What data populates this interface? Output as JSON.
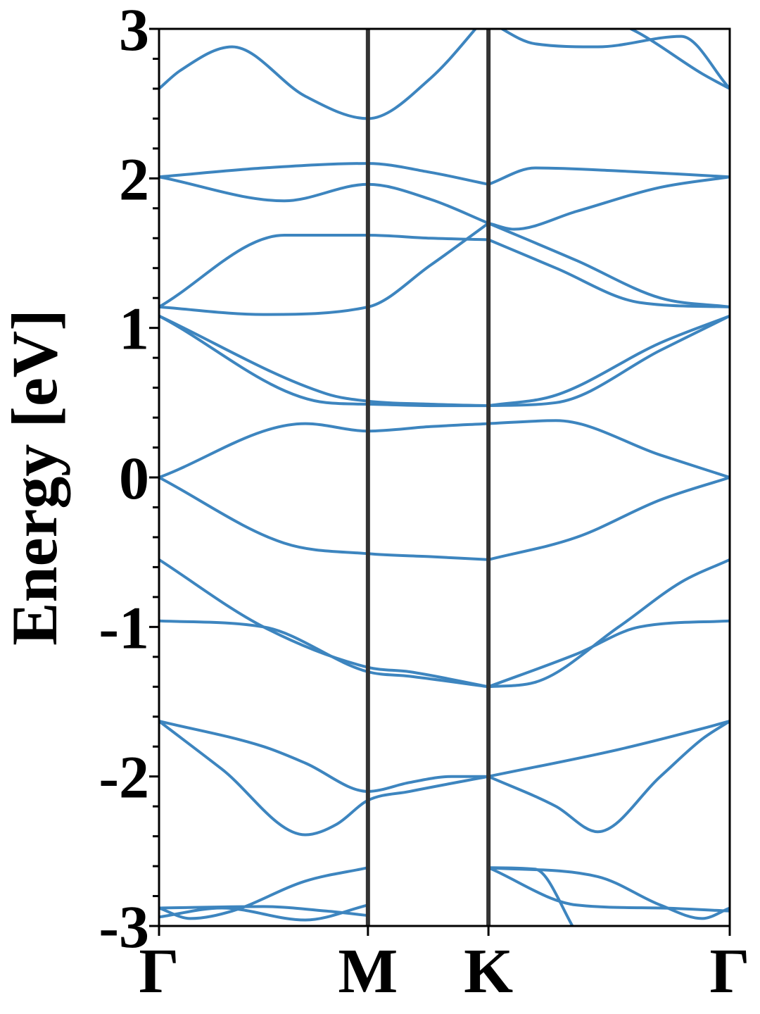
{
  "chart_data": {
    "type": "line",
    "title": "",
    "xlabel": "",
    "ylabel": "Energy [eV]",
    "ylim": [
      -3,
      3
    ],
    "yticks": [
      {
        "value": 3,
        "label": "3"
      },
      {
        "value": 2,
        "label": "2"
      },
      {
        "value": 1,
        "label": "1"
      },
      {
        "value": 0,
        "label": "0"
      },
      {
        "value": -1,
        "label": "-1"
      },
      {
        "value": -2,
        "label": "-2"
      },
      {
        "value": -3,
        "label": "-3"
      }
    ],
    "kpath": [
      {
        "label": "Γ",
        "position": 0.0
      },
      {
        "label": "M",
        "position": 1.0
      },
      {
        "label": "K",
        "position": 1.577
      },
      {
        "label": "Γ",
        "position": 2.732
      }
    ],
    "grid": false,
    "legend": "none",
    "colors": {
      "bands": "#3d85bf",
      "high_symmetry_lines": "#333333"
    },
    "series": [
      {
        "points": [
          [
            0,
            -2.94
          ],
          [
            0.3,
            -2.88
          ],
          [
            0.7,
            -2.96
          ],
          [
            1.0,
            -2.86
          ]
        ]
      },
      {
        "points": [
          [
            0,
            -2.88
          ],
          [
            0.5,
            -2.87
          ],
          [
            0.8,
            -2.9
          ],
          [
            1.0,
            -2.93
          ]
        ]
      },
      {
        "points": [
          [
            0,
            -2.88
          ],
          [
            0.15,
            -2.95
          ],
          [
            0.35,
            -2.9
          ],
          [
            0.7,
            -2.7
          ],
          [
            1.0,
            -2.61
          ]
        ]
      },
      {
        "points": [
          [
            0,
            -1.63
          ],
          [
            0.5,
            -1.8
          ],
          [
            0.7,
            -1.91
          ],
          [
            1.0,
            -2.1
          ],
          [
            1.2,
            -2.04
          ],
          [
            1.4,
            -2.0
          ],
          [
            1.577,
            -2.0
          ]
        ]
      },
      {
        "points": [
          [
            0,
            -1.63
          ],
          [
            0.3,
            -1.95
          ],
          [
            0.7,
            -2.39
          ],
          [
            0.85,
            -2.32
          ],
          [
            1.0,
            -2.16
          ],
          [
            1.2,
            -2.1
          ],
          [
            1.577,
            -2.0
          ]
        ]
      },
      {
        "points": [
          [
            0,
            -0.96
          ],
          [
            0.5,
            -1.0
          ],
          [
            1.0,
            -1.3
          ],
          [
            1.2,
            -1.33
          ],
          [
            1.577,
            -1.4
          ]
        ]
      },
      {
        "points": [
          [
            0,
            -0.55
          ],
          [
            0.5,
            -1.0
          ],
          [
            1.0,
            -1.27
          ],
          [
            1.2,
            -1.3
          ],
          [
            1.577,
            -1.4
          ]
        ]
      },
      {
        "points": [
          [
            0,
            0.0
          ],
          [
            0.6,
            -0.44
          ],
          [
            1.0,
            -0.51
          ],
          [
            1.3,
            -0.53
          ],
          [
            1.577,
            -0.55
          ]
        ]
      },
      {
        "points": [
          [
            0,
            0.0
          ],
          [
            0.7,
            0.36
          ],
          [
            1.0,
            0.31
          ],
          [
            1.3,
            0.34
          ],
          [
            1.577,
            0.36
          ]
        ]
      },
      {
        "points": [
          [
            0,
            1.08
          ],
          [
            0.8,
            0.56
          ],
          [
            1.0,
            0.51
          ],
          [
            1.3,
            0.49
          ],
          [
            1.577,
            0.48
          ]
        ]
      },
      {
        "points": [
          [
            0,
            1.08
          ],
          [
            0.8,
            0.5
          ],
          [
            1.0,
            0.49
          ],
          [
            1.3,
            0.48
          ],
          [
            1.577,
            0.48
          ]
        ]
      },
      {
        "points": [
          [
            0,
            1.14
          ],
          [
            0.5,
            1.09
          ],
          [
            1.0,
            1.14
          ],
          [
            1.3,
            1.42
          ],
          [
            1.577,
            1.7
          ]
        ]
      },
      {
        "points": [
          [
            0,
            1.14
          ],
          [
            0.6,
            1.62
          ],
          [
            1.0,
            1.62
          ],
          [
            1.3,
            1.6
          ],
          [
            1.577,
            1.59
          ]
        ]
      },
      {
        "points": [
          [
            0,
            2.01
          ],
          [
            0.6,
            1.85
          ],
          [
            1.0,
            1.96
          ],
          [
            1.3,
            1.86
          ],
          [
            1.577,
            1.7
          ]
        ]
      },
      {
        "points": [
          [
            0,
            2.01
          ],
          [
            0.5,
            2.07
          ],
          [
            1.0,
            2.1
          ],
          [
            1.3,
            2.04
          ],
          [
            1.577,
            1.96
          ]
        ]
      },
      {
        "points": [
          [
            0,
            2.6
          ],
          [
            0.1,
            2.72
          ],
          [
            0.35,
            2.88
          ],
          [
            0.7,
            2.55
          ],
          [
            1.0,
            2.4
          ],
          [
            1.3,
            2.67
          ],
          [
            1.577,
            3.1
          ]
        ]
      },
      {
        "points": [
          [
            1.577,
            -2.61
          ],
          [
            2.1,
            -2.67
          ],
          [
            2.4,
            -2.86
          ],
          [
            2.6,
            -2.95
          ],
          [
            2.732,
            -2.88
          ]
        ]
      },
      {
        "points": [
          [
            1.577,
            -2.61
          ],
          [
            2.0,
            -2.86
          ],
          [
            2.4,
            -2.88
          ],
          [
            2.732,
            -2.9
          ]
        ]
      },
      {
        "points": [
          [
            1.577,
            -2.61
          ],
          [
            1.8,
            -2.62
          ],
          [
            2.0,
            -3.05
          ]
        ]
      },
      {
        "points": [
          [
            1.577,
            -2.0
          ],
          [
            2.2,
            -1.82
          ],
          [
            2.6,
            -1.68
          ],
          [
            2.732,
            -1.63
          ]
        ]
      },
      {
        "points": [
          [
            1.577,
            -2.0
          ],
          [
            1.9,
            -2.2
          ],
          [
            2.1,
            -2.37
          ],
          [
            2.4,
            -2.0
          ],
          [
            2.6,
            -1.75
          ],
          [
            2.732,
            -1.63
          ]
        ]
      },
      {
        "points": [
          [
            1.577,
            -1.4
          ],
          [
            2.0,
            -1.18
          ],
          [
            2.3,
            -1.0
          ],
          [
            2.732,
            -0.96
          ]
        ]
      },
      {
        "points": [
          [
            1.577,
            -1.4
          ],
          [
            1.8,
            -1.37
          ],
          [
            2.2,
            -1.0
          ],
          [
            2.5,
            -0.7
          ],
          [
            2.732,
            -0.55
          ]
        ]
      },
      {
        "points": [
          [
            1.577,
            -0.55
          ],
          [
            2.0,
            -0.4
          ],
          [
            2.4,
            -0.15
          ],
          [
            2.732,
            0.0
          ]
        ]
      },
      {
        "points": [
          [
            1.577,
            0.36
          ],
          [
            1.9,
            0.38
          ],
          [
            2.4,
            0.15
          ],
          [
            2.732,
            0.0
          ]
        ]
      },
      {
        "points": [
          [
            1.577,
            0.48
          ],
          [
            1.9,
            0.55
          ],
          [
            2.4,
            0.9
          ],
          [
            2.732,
            1.08
          ]
        ]
      },
      {
        "points": [
          [
            1.577,
            0.48
          ],
          [
            1.9,
            0.5
          ],
          [
            2.4,
            0.85
          ],
          [
            2.732,
            1.08
          ]
        ]
      },
      {
        "points": [
          [
            1.577,
            1.59
          ],
          [
            1.9,
            1.4
          ],
          [
            2.3,
            1.17
          ],
          [
            2.732,
            1.14
          ]
        ]
      },
      {
        "points": [
          [
            1.577,
            1.7
          ],
          [
            2.0,
            1.45
          ],
          [
            2.4,
            1.2
          ],
          [
            2.732,
            1.14
          ]
        ]
      },
      {
        "points": [
          [
            1.577,
            1.7
          ],
          [
            1.7,
            1.66
          ],
          [
            2.0,
            1.78
          ],
          [
            2.4,
            1.94
          ],
          [
            2.732,
            2.01
          ]
        ]
      },
      {
        "points": [
          [
            1.577,
            1.96
          ],
          [
            1.8,
            2.07
          ],
          [
            2.2,
            2.05
          ],
          [
            2.732,
            2.01
          ]
        ]
      },
      {
        "points": [
          [
            1.577,
            3.05
          ],
          [
            1.8,
            2.9
          ],
          [
            2.1,
            2.88
          ],
          [
            2.5,
            2.95
          ],
          [
            2.732,
            2.6
          ]
        ]
      },
      {
        "points": [
          [
            2.1,
            3.1
          ],
          [
            2.3,
            2.97
          ],
          [
            2.6,
            2.7
          ],
          [
            2.732,
            2.6
          ]
        ]
      }
    ]
  }
}
